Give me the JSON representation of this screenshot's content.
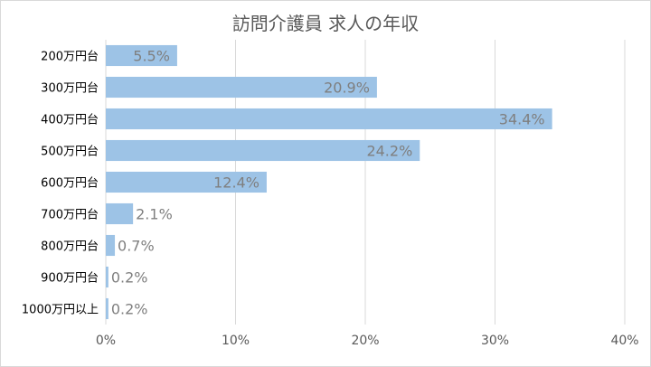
{
  "chart_data": {
    "type": "bar",
    "orientation": "horizontal",
    "title": "訪問介護員 求人の年収",
    "categories": [
      "200万円台",
      "300万円台",
      "400万円台",
      "500万円台",
      "600万円台",
      "700万円台",
      "800万円台",
      "900万円台",
      "1000万円以上"
    ],
    "values": [
      5.5,
      20.9,
      34.4,
      24.2,
      12.4,
      2.1,
      0.7,
      0.2,
      0.2
    ],
    "data_labels": [
      "5.5%",
      "20.9%",
      "34.4%",
      "24.2%",
      "12.4%",
      "2.1%",
      "0.7%",
      "0.2%",
      "0.2%"
    ],
    "xlim": [
      0,
      40
    ],
    "x_ticks": [
      0,
      10,
      20,
      30,
      40
    ],
    "x_tick_labels": [
      "0%",
      "10%",
      "20%",
      "30%",
      "40%"
    ],
    "grid": true,
    "bar_color": "#9dc3e6",
    "label_color": "#7f7f7f",
    "grid_color": "#d9d9d9"
  }
}
